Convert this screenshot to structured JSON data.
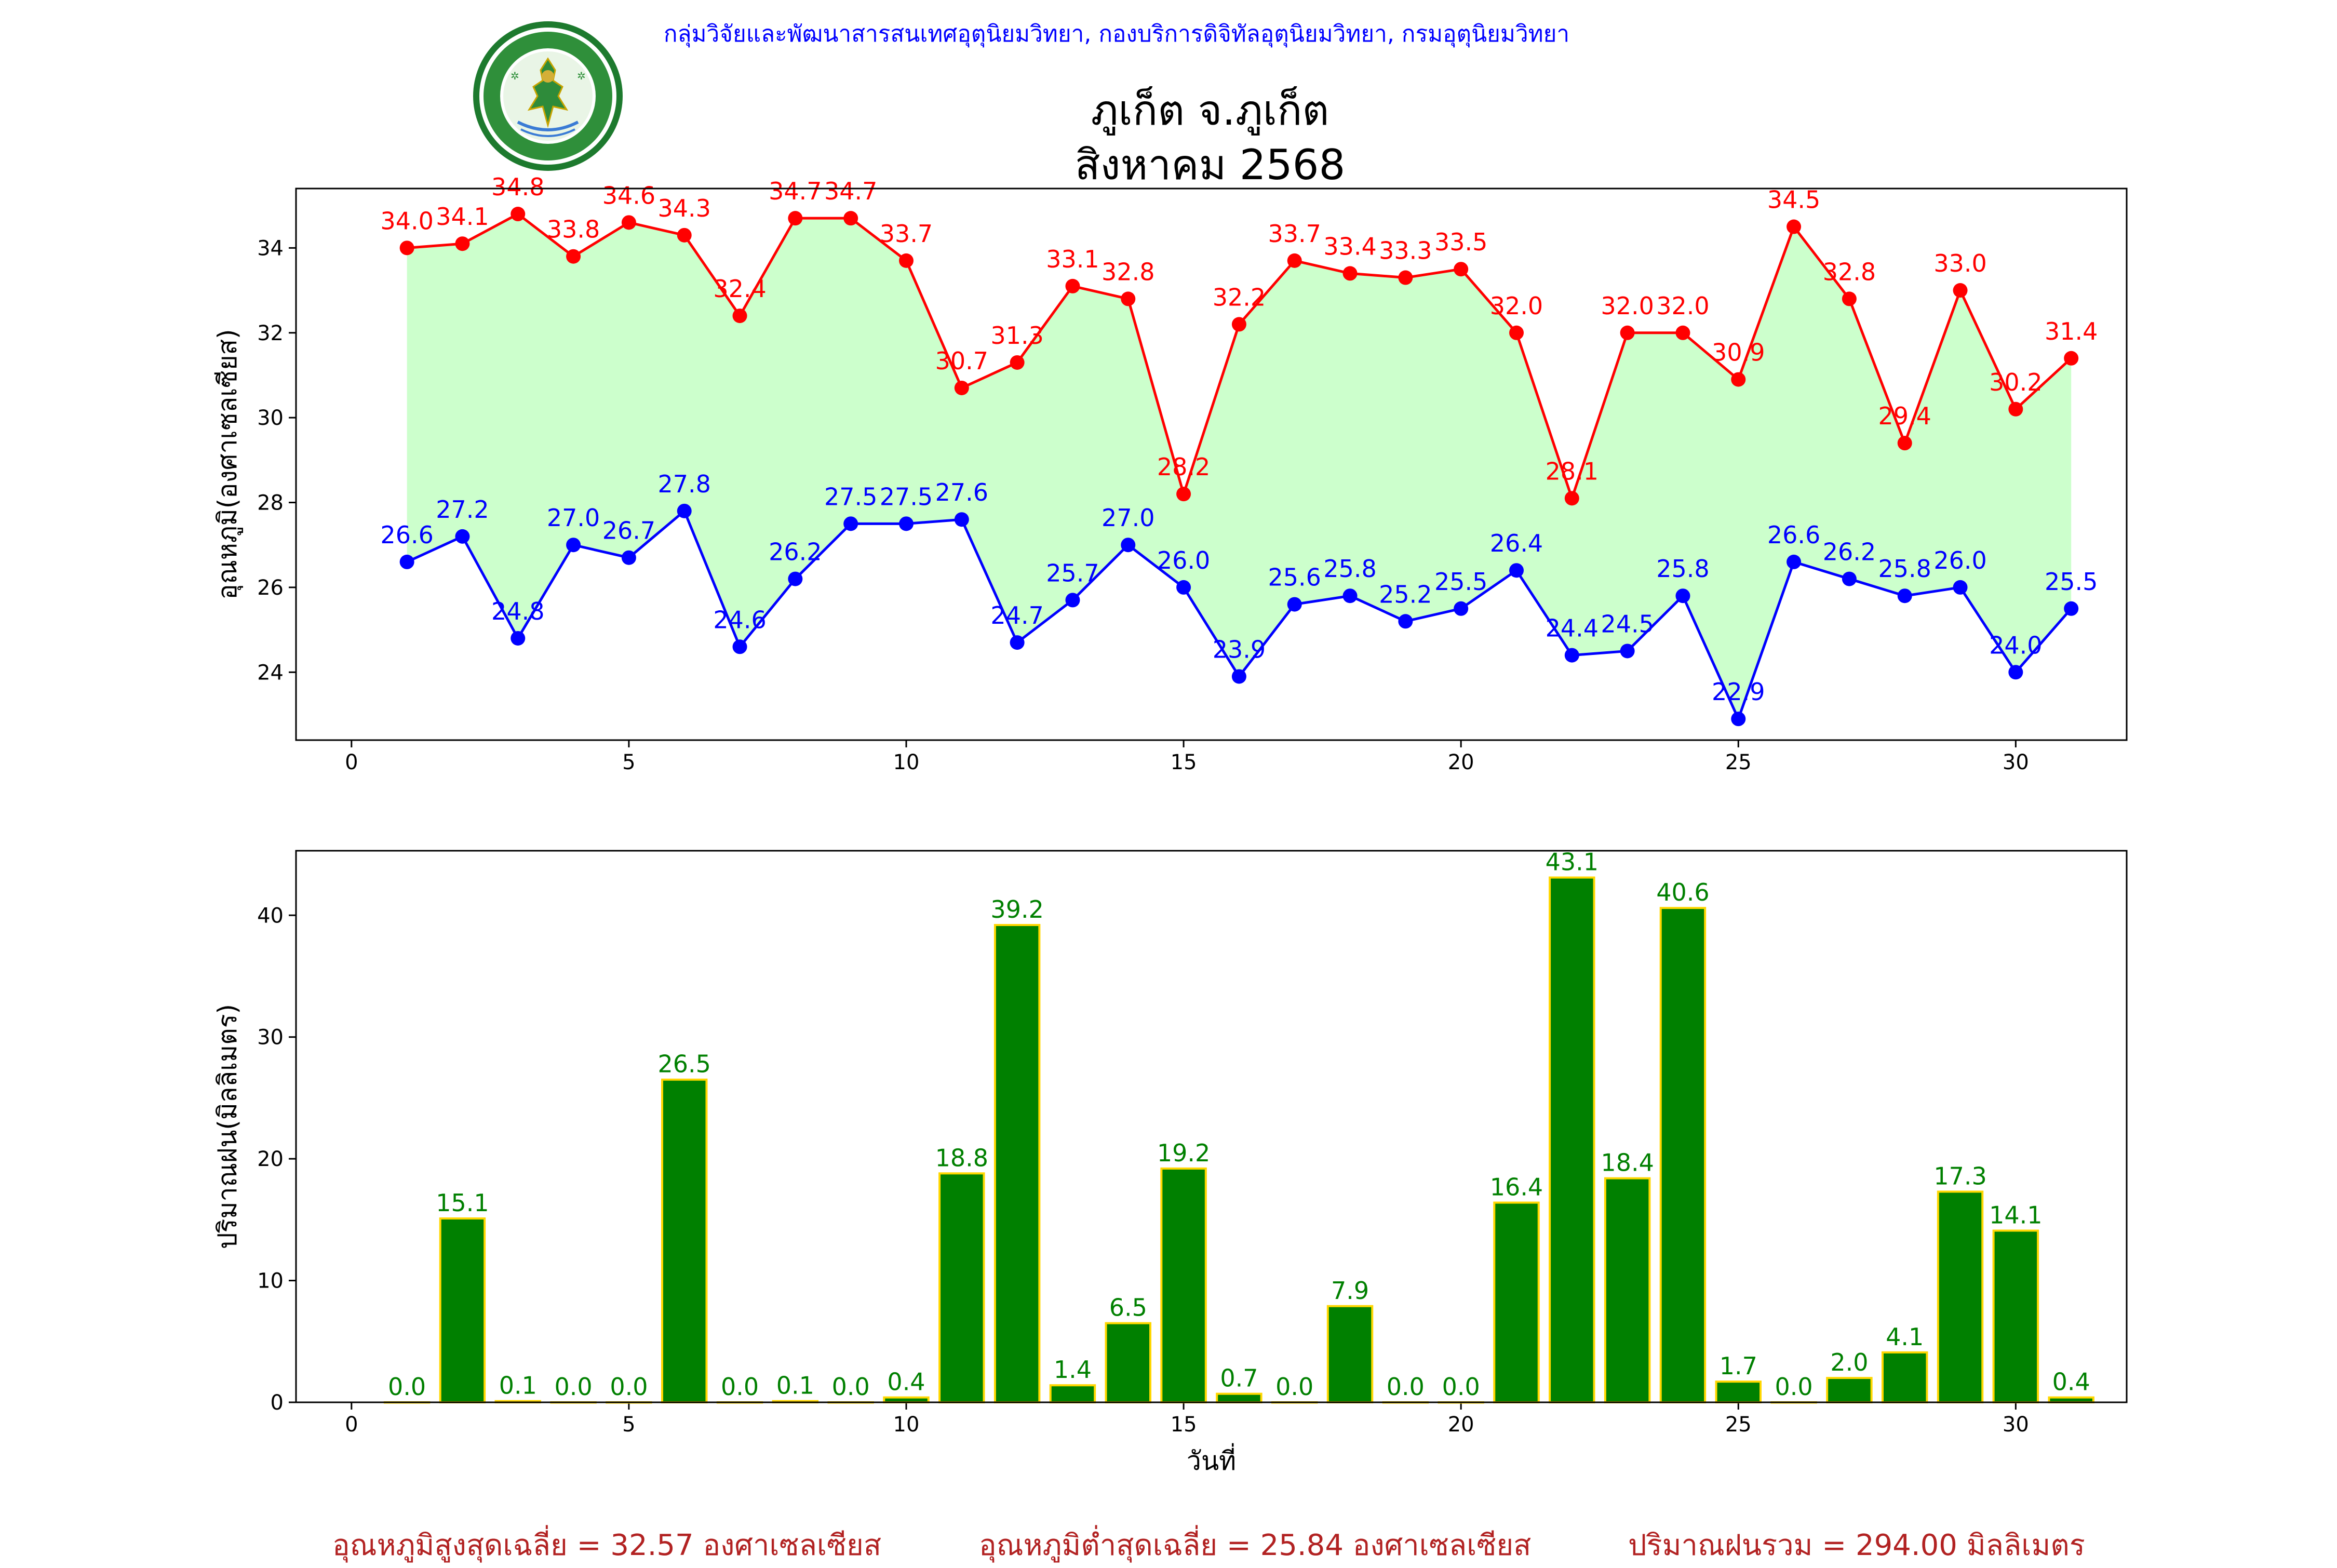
{
  "header": {
    "org_line": "กลุ่มวิจัยและพัฒนาสารสนเทศอุตุนิยมวิทยา, กองบริการดิจิทัลอุตุนิยมวิทยา, กรมอุตุนิยมวิทยา",
    "logo_text": "กรมอุตุนิยมวิทยา METEOROLOGICAL DEPARTMENT",
    "title_line1": "ภูเก็ต จ.ภูเก็ต",
    "title_line2": "สิงหาคม 2568"
  },
  "colors": {
    "max_temp": "#ff0000",
    "min_temp": "#0000ff",
    "fill": "#ccffcc",
    "rain_bar": "#008000",
    "rain_edge": "#ffd700",
    "header_text": "#0000ff",
    "footer_text": "#b22222"
  },
  "chart_data": [
    {
      "type": "line",
      "xlabel": "",
      "ylabel": "อุณหภูมิ(องศาเซลเซียส)",
      "xlim": [
        -1,
        32
      ],
      "ylim": [
        22.4,
        35.4
      ],
      "xticks": [
        0,
        5,
        10,
        15,
        20,
        25,
        30
      ],
      "yticks": [
        24,
        26,
        28,
        30,
        32,
        34
      ],
      "grid": false,
      "x": [
        1,
        2,
        3,
        4,
        5,
        6,
        7,
        8,
        9,
        10,
        11,
        12,
        13,
        14,
        15,
        16,
        17,
        18,
        19,
        20,
        21,
        22,
        23,
        24,
        25,
        26,
        27,
        28,
        29,
        30,
        31
      ],
      "series": [
        {
          "values": [
            34.0,
            34.1,
            34.8,
            33.8,
            34.6,
            34.3,
            32.4,
            34.7,
            34.7,
            33.7,
            30.7,
            31.3,
            33.1,
            32.8,
            28.2,
            32.2,
            33.7,
            33.4,
            33.3,
            33.5,
            32.0,
            28.1,
            32.0,
            32.0,
            30.9,
            34.5,
            32.8,
            29.4,
            33.0,
            30.2,
            31.4
          ]
        },
        {
          "values": [
            26.6,
            27.2,
            24.8,
            27.0,
            26.7,
            27.8,
            24.6,
            26.2,
            27.5,
            27.5,
            27.6,
            24.7,
            25.7,
            27.0,
            26.0,
            23.9,
            25.6,
            25.8,
            25.2,
            25.5,
            26.4,
            24.4,
            24.5,
            25.8,
            22.9,
            26.6,
            26.2,
            25.8,
            26.0,
            24.0,
            25.5
          ]
        }
      ]
    },
    {
      "type": "bar",
      "xlabel": "วันที่",
      "ylabel": "ปริมาณฝน(มิลลิเมตร)",
      "xlim": [
        -1,
        32
      ],
      "ylim": [
        0,
        45.3
      ],
      "xticks": [
        0,
        5,
        10,
        15,
        20,
        25,
        30
      ],
      "yticks": [
        0,
        10,
        20,
        30,
        40
      ],
      "grid": false,
      "categories": [
        1,
        2,
        3,
        4,
        5,
        6,
        7,
        8,
        9,
        10,
        11,
        12,
        13,
        14,
        15,
        16,
        17,
        18,
        19,
        20,
        21,
        22,
        23,
        24,
        25,
        26,
        27,
        28,
        29,
        30,
        31
      ],
      "values": [
        0.0,
        15.1,
        0.1,
        0.0,
        0.0,
        26.5,
        0.0,
        0.1,
        0.0,
        0.4,
        18.8,
        39.2,
        1.4,
        6.5,
        19.2,
        0.7,
        0.0,
        7.9,
        0.0,
        0.0,
        16.4,
        43.1,
        18.4,
        40.6,
        1.7,
        0.0,
        2.0,
        4.1,
        17.3,
        14.1,
        0.4
      ]
    }
  ],
  "footer": {
    "avg_max": "อุณหภูมิสูงสุดเฉลี่ย = 32.57 องศาเซลเซียส",
    "avg_min": "อุณหภูมิต่ำสุดเฉลี่ย = 25.84 องศาเซลเซียส",
    "total_rain": "ปริมาณฝนรวม = 294.00 มิลลิเมตร"
  }
}
